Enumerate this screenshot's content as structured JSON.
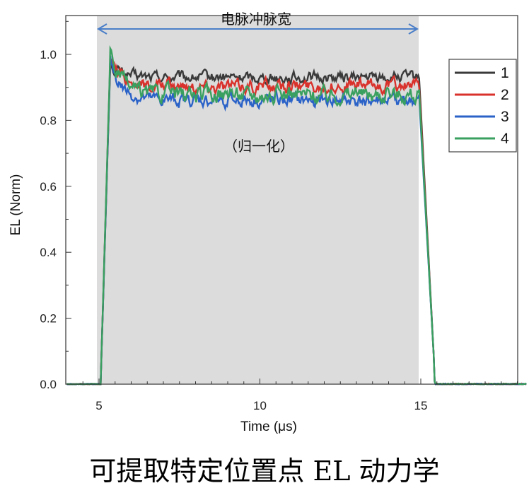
{
  "chart_data": {
    "type": "line",
    "xlabel": "Time (μs)",
    "ylabel": "EL (Norm)",
    "xlim": [
      4,
      18.3
    ],
    "ylim": [
      0,
      1.1
    ],
    "x_ticks": [
      5,
      10,
      15
    ],
    "y_ticks": [
      "0.0",
      "0.2",
      "0.4",
      "0.6",
      "0.8",
      "1.0"
    ],
    "grid": false,
    "legend_position": "right",
    "shaded_region": {
      "x_start": 5,
      "x_end": 15,
      "color": "#dcdcdc"
    },
    "pulse": {
      "rise_start": 5.05,
      "rise_end": 5.35,
      "fall_start": 14.95,
      "fall_end": 15.45
    },
    "annotations": {
      "pulse_width": "电脉冲脉宽",
      "normalized": "（归一化）"
    },
    "series": [
      {
        "name": "1",
        "color": "#3a3a3a",
        "plateau": 0.93,
        "amplitude": 0.02,
        "peak": 0.97
      },
      {
        "name": "2",
        "color": "#d9312b",
        "plateau": 0.905,
        "amplitude": 0.025,
        "peak": 0.99
      },
      {
        "name": "3",
        "color": "#2a62c8",
        "plateau": 0.86,
        "amplitude": 0.025,
        "peak": 0.98
      },
      {
        "name": "4",
        "color": "#3aa060",
        "plateau": 0.88,
        "amplitude": 0.03,
        "peak": 1.0
      }
    ]
  },
  "caption": "可提取特定位置点 EL 动力学"
}
